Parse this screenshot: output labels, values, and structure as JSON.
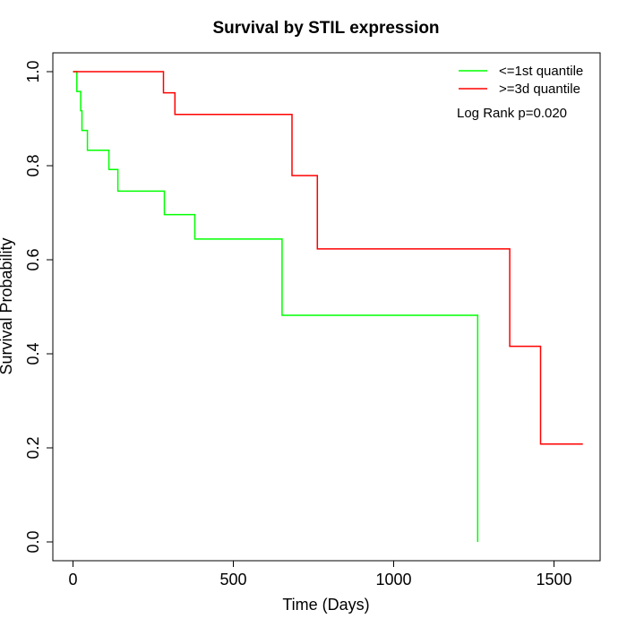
{
  "chart_data": {
    "type": "line",
    "title": "Survival by STIL expression",
    "xlabel": "Time (Days)",
    "ylabel": "Survival Probability",
    "xlim": [
      0,
      1650
    ],
    "ylim": [
      0,
      1.0
    ],
    "xticks": [
      0,
      500,
      1000,
      1500
    ],
    "yticks": [
      0.0,
      0.2,
      0.4,
      0.6,
      0.8,
      1.0
    ],
    "xtick_labels": [
      "0",
      "500",
      "1000",
      "1500"
    ],
    "ytick_labels": [
      "0.0",
      "0.2",
      "0.4",
      "0.6",
      "0.8",
      "1.0"
    ],
    "grid": false,
    "legend_position": "top-right",
    "annotation": "Log Rank p=0.020",
    "series": [
      {
        "name": "<=1st quantile",
        "color": "#00ff00",
        "steps": [
          [
            0,
            1.0
          ],
          [
            12,
            1.0
          ],
          [
            12,
            0.958
          ],
          [
            24,
            0.958
          ],
          [
            24,
            0.917
          ],
          [
            28,
            0.917
          ],
          [
            28,
            0.875
          ],
          [
            45,
            0.875
          ],
          [
            45,
            0.833
          ],
          [
            112,
            0.833
          ],
          [
            112,
            0.792
          ],
          [
            140,
            0.792
          ],
          [
            140,
            0.746
          ],
          [
            285,
            0.746
          ],
          [
            285,
            0.696
          ],
          [
            380,
            0.696
          ],
          [
            380,
            0.644
          ],
          [
            652,
            0.644
          ],
          [
            652,
            0.482
          ],
          [
            1262,
            0.482
          ],
          [
            1262,
            0.0
          ]
        ]
      },
      {
        "name": ">=3d quantile",
        "color": "#ff0000",
        "steps": [
          [
            0,
            1.0
          ],
          [
            282,
            1.0
          ],
          [
            282,
            0.955
          ],
          [
            318,
            0.955
          ],
          [
            318,
            0.909
          ],
          [
            683,
            0.909
          ],
          [
            683,
            0.779
          ],
          [
            762,
            0.779
          ],
          [
            762,
            0.623
          ],
          [
            1362,
            0.623
          ],
          [
            1362,
            0.416
          ],
          [
            1458,
            0.416
          ],
          [
            1458,
            0.208
          ],
          [
            1590,
            0.208
          ]
        ]
      }
    ]
  }
}
